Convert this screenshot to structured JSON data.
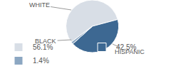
{
  "chart_data": {
    "type": "pie",
    "categories": [
      "WHITE",
      "HISPANIC",
      "BLACK"
    ],
    "values": [
      56.1,
      42.5,
      1.4
    ],
    "value_labels": [
      "56.1%",
      "42.5%",
      "1.4%"
    ],
    "colors": [
      "#d8dee6",
      "#3d6892",
      "#8ca7c2"
    ],
    "legend": "bottom"
  }
}
